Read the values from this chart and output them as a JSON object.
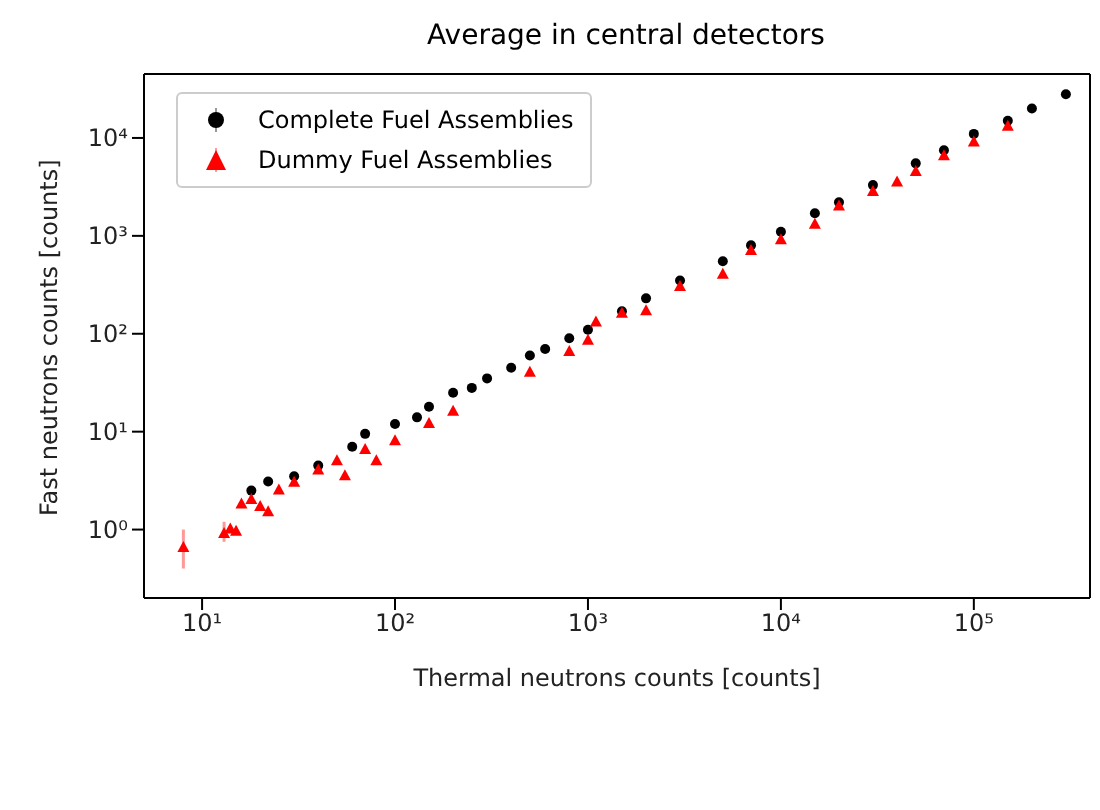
{
  "chart_data": {
    "type": "scatter",
    "title": "Average in central detectors",
    "xlabel": "Thermal neutrons counts [counts]",
    "ylabel": "Fast neutrons counts [counts]",
    "log": "xy",
    "grid": false,
    "legend": "top left",
    "xlim": [
      5,
      400000
    ],
    "ylim": [
      0.2,
      45000
    ],
    "xticks": [
      {
        "value": 10,
        "label": "10¹"
      },
      {
        "value": 100,
        "label": "10²"
      },
      {
        "value": 1000,
        "label": "10³"
      },
      {
        "value": 10000,
        "label": "10⁴"
      },
      {
        "value": 100000,
        "label": "10⁵"
      }
    ],
    "yticks": [
      {
        "value": 1,
        "label": "10⁰"
      },
      {
        "value": 10,
        "label": "10¹"
      },
      {
        "value": 100,
        "label": "10²"
      },
      {
        "value": 1000,
        "label": "10³"
      },
      {
        "value": 10000,
        "label": "10⁴"
      }
    ],
    "series": [
      {
        "name": "Complete Fuel Assemblies",
        "color": "#000000",
        "marker": "circle",
        "x": [
          18,
          22,
          30,
          40,
          60,
          70,
          100,
          130,
          150,
          200,
          250,
          300,
          400,
          500,
          600,
          800,
          1000,
          1500,
          2000,
          3000,
          5000,
          7000,
          10000,
          15000,
          20000,
          30000,
          50000,
          70000,
          100000,
          150000,
          200000,
          300000
        ],
        "values": [
          2.5,
          3.1,
          3.5,
          4.5,
          7,
          9.5,
          12,
          14,
          18,
          25,
          28,
          35,
          45,
          60,
          70,
          90,
          110,
          170,
          230,
          350,
          550,
          800,
          1100,
          1700,
          2200,
          3300,
          5500,
          7500,
          11000,
          15000,
          20000,
          28000
        ]
      },
      {
        "name": "Dummy Fuel Assemblies",
        "color": "#ff0000",
        "marker": "triangle",
        "x": [
          8,
          13,
          14,
          15,
          16,
          18,
          20,
          22,
          25,
          30,
          40,
          50,
          55,
          70,
          80,
          100,
          150,
          200,
          500,
          800,
          1000,
          1100,
          1500,
          2000,
          3000,
          5000,
          7000,
          10000,
          15000,
          20000,
          30000,
          40000,
          50000,
          70000,
          100000,
          150000
        ],
        "values": [
          0.65,
          0.9,
          1.0,
          0.95,
          1.8,
          2,
          1.7,
          1.5,
          2.5,
          3,
          4,
          5,
          3.5,
          6.5,
          5,
          8,
          12,
          16,
          40,
          65,
          85,
          130,
          160,
          170,
          300,
          400,
          700,
          900,
          1300,
          2000,
          2800,
          3500,
          4500,
          6500,
          9000,
          13000
        ],
        "errors": [
          [
            0.4,
            1.0
          ],
          [
            0.75,
            1.2
          ],
          null,
          null,
          null,
          null,
          null,
          null,
          null,
          null,
          null,
          null,
          null,
          null,
          null,
          null,
          null,
          null,
          null,
          null,
          null,
          null,
          null,
          null,
          null,
          null,
          null,
          null,
          null,
          null,
          null,
          null,
          null,
          null,
          null,
          null
        ]
      }
    ]
  }
}
